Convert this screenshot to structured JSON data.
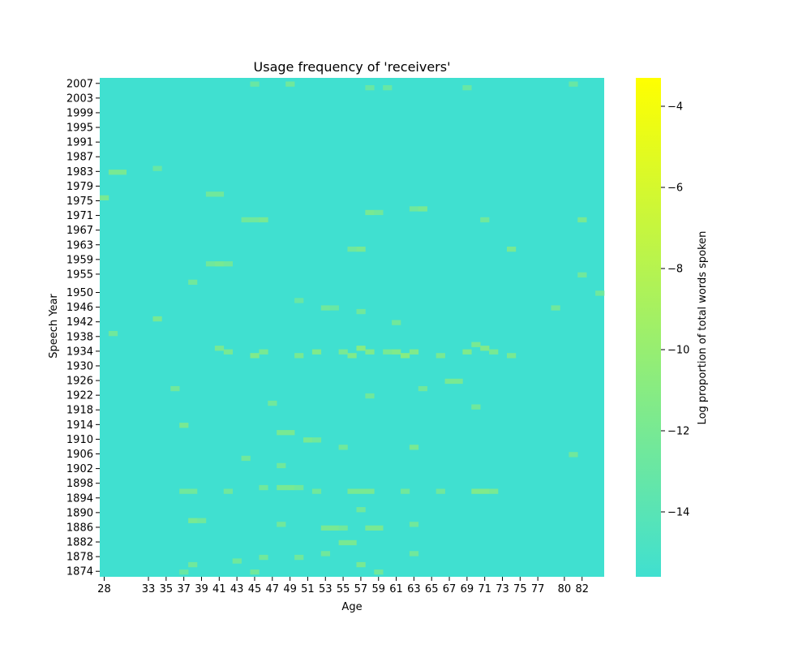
{
  "chart_data": {
    "type": "heatmap",
    "title": "Usage frequency of 'receivers'",
    "xlabel": "Age",
    "ylabel": "Speech Year",
    "colorbar_label": "Log proportion of total words spoken",
    "x_tick_labels": [
      "28",
      "33",
      "35",
      "37",
      "39",
      "41",
      "43",
      "45",
      "47",
      "49",
      "51",
      "53",
      "55",
      "57",
      "59",
      "61",
      "63",
      "65",
      "67",
      "69",
      "71",
      "73",
      "75",
      "77",
      "80",
      "82"
    ],
    "y_tick_labels": [
      "2007",
      "2003",
      "1999",
      "1995",
      "1991",
      "1987",
      "1983",
      "1979",
      "1975",
      "1971",
      "1967",
      "1963",
      "1959",
      "1955",
      "1950",
      "1946",
      "1942",
      "1938",
      "1934",
      "1930",
      "1926",
      "1922",
      "1918",
      "1914",
      "1910",
      "1906",
      "1902",
      "1898",
      "1894",
      "1890",
      "1886",
      "1882",
      "1878",
      "1874"
    ],
    "colorbar_ticks": [
      "−4",
      "−6",
      "−8",
      "−10",
      "−12",
      "−14"
    ],
    "colorbar_tick_values": [
      -4,
      -6,
      -8,
      -10,
      -12,
      -14
    ],
    "colorbar_range": [
      -15.6,
      -3.3
    ],
    "background_value": -15.6,
    "colormap": [
      "#40E0D0",
      "#FFFF00"
    ],
    "grid": false,
    "legend": "colorbar-right",
    "cells_note": "Sparse cells at approximately -12 to -13 log proportion; a few reach about -11.",
    "cells": [
      [
        45,
        2007,
        -13
      ],
      [
        49,
        2007,
        -12.5
      ],
      [
        58,
        2006,
        -13
      ],
      [
        60,
        2006,
        -13
      ],
      [
        69,
        2006,
        -13
      ],
      [
        81,
        2007,
        -13
      ],
      [
        29,
        1983,
        -12
      ],
      [
        30,
        1983,
        -12
      ],
      [
        34,
        1984,
        -13
      ],
      [
        28,
        1976,
        -12
      ],
      [
        40,
        1977,
        -12.5
      ],
      [
        41,
        1977,
        -12.5
      ],
      [
        44,
        1970,
        -12.5
      ],
      [
        45,
        1970,
        -12.5
      ],
      [
        46,
        1970,
        -12
      ],
      [
        58,
        1972,
        -12
      ],
      [
        59,
        1972,
        -12.5
      ],
      [
        63,
        1973,
        -12.5
      ],
      [
        64,
        1973,
        -12
      ],
      [
        71,
        1970,
        -12.5
      ],
      [
        82,
        1970,
        -12
      ],
      [
        40,
        1958,
        -12.5
      ],
      [
        41,
        1958,
        -12
      ],
      [
        42,
        1958,
        -12.5
      ],
      [
        56,
        1962,
        -12.5
      ],
      [
        57,
        1962,
        -12
      ],
      [
        74,
        1962,
        -12
      ],
      [
        82,
        1955,
        -12.5
      ],
      [
        84,
        1950,
        -12.5
      ],
      [
        38,
        1953,
        -12.5
      ],
      [
        50,
        1948,
        -13
      ],
      [
        53,
        1946,
        -12.5
      ],
      [
        54,
        1946,
        -13
      ],
      [
        57,
        1945,
        -12.5
      ],
      [
        61,
        1942,
        -12.5
      ],
      [
        79,
        1946,
        -12.5
      ],
      [
        29,
        1939,
        -12.5
      ],
      [
        34,
        1943,
        -12
      ],
      [
        41,
        1935,
        -12
      ],
      [
        42,
        1934,
        -12
      ],
      [
        45,
        1933,
        -11.5
      ],
      [
        46,
        1934,
        -12
      ],
      [
        50,
        1933,
        -12
      ],
      [
        52,
        1934,
        -11.5
      ],
      [
        55,
        1934,
        -12
      ],
      [
        56,
        1933,
        -11.5
      ],
      [
        57,
        1935,
        -11
      ],
      [
        58,
        1934,
        -11.5
      ],
      [
        60,
        1934,
        -12
      ],
      [
        61,
        1934,
        -11.5
      ],
      [
        62,
        1933,
        -11
      ],
      [
        63,
        1934,
        -11.5
      ],
      [
        66,
        1933,
        -12
      ],
      [
        69,
        1934,
        -11.5
      ],
      [
        70,
        1936,
        -12
      ],
      [
        71,
        1935,
        -11.5
      ],
      [
        72,
        1934,
        -12
      ],
      [
        74,
        1933,
        -12
      ],
      [
        36,
        1924,
        -12.5
      ],
      [
        47,
        1920,
        -12.5
      ],
      [
        58,
        1922,
        -12.5
      ],
      [
        64,
        1924,
        -12.5
      ],
      [
        67,
        1926,
        -12
      ],
      [
        68,
        1926,
        -12
      ],
      [
        70,
        1919,
        -12.5
      ],
      [
        37,
        1914,
        -12
      ],
      [
        48,
        1912,
        -12
      ],
      [
        49,
        1912,
        -12
      ],
      [
        51,
        1910,
        -12
      ],
      [
        52,
        1910,
        -12.5
      ],
      [
        55,
        1908,
        -12.5
      ],
      [
        63,
        1908,
        -12
      ],
      [
        44,
        1905,
        -12.5
      ],
      [
        48,
        1903,
        -12.5
      ],
      [
        81,
        1906,
        -12.5
      ],
      [
        37,
        1896,
        -12.5
      ],
      [
        38,
        1896,
        -12.5
      ],
      [
        42,
        1896,
        -12.5
      ],
      [
        46,
        1897,
        -12.5
      ],
      [
        48,
        1897,
        -12
      ],
      [
        49,
        1897,
        -12
      ],
      [
        50,
        1897,
        -12.5
      ],
      [
        52,
        1896,
        -12.5
      ],
      [
        56,
        1896,
        -12
      ],
      [
        57,
        1896,
        -12
      ],
      [
        58,
        1896,
        -12
      ],
      [
        62,
        1896,
        -12.5
      ],
      [
        66,
        1896,
        -12.5
      ],
      [
        70,
        1896,
        -11.5
      ],
      [
        71,
        1896,
        -11.5
      ],
      [
        72,
        1896,
        -12
      ],
      [
        38,
        1888,
        -12
      ],
      [
        39,
        1888,
        -12.5
      ],
      [
        48,
        1887,
        -12.5
      ],
      [
        53,
        1886,
        -12
      ],
      [
        54,
        1886,
        -12
      ],
      [
        55,
        1886,
        -12.5
      ],
      [
        57,
        1891,
        -12.5
      ],
      [
        58,
        1886,
        -12
      ],
      [
        59,
        1886,
        -12
      ],
      [
        63,
        1887,
        -12.5
      ],
      [
        38,
        1876,
        -12.5
      ],
      [
        43,
        1877,
        -12.5
      ],
      [
        46,
        1878,
        -12.5
      ],
      [
        50,
        1878,
        -12.5
      ],
      [
        53,
        1879,
        -12.5
      ],
      [
        55,
        1882,
        -12
      ],
      [
        56,
        1882,
        -12
      ],
      [
        57,
        1876,
        -12
      ],
      [
        63,
        1879,
        -12.5
      ],
      [
        37,
        1874,
        -13
      ],
      [
        45,
        1874,
        -12.5
      ],
      [
        59,
        1874,
        -12.5
      ]
    ]
  }
}
